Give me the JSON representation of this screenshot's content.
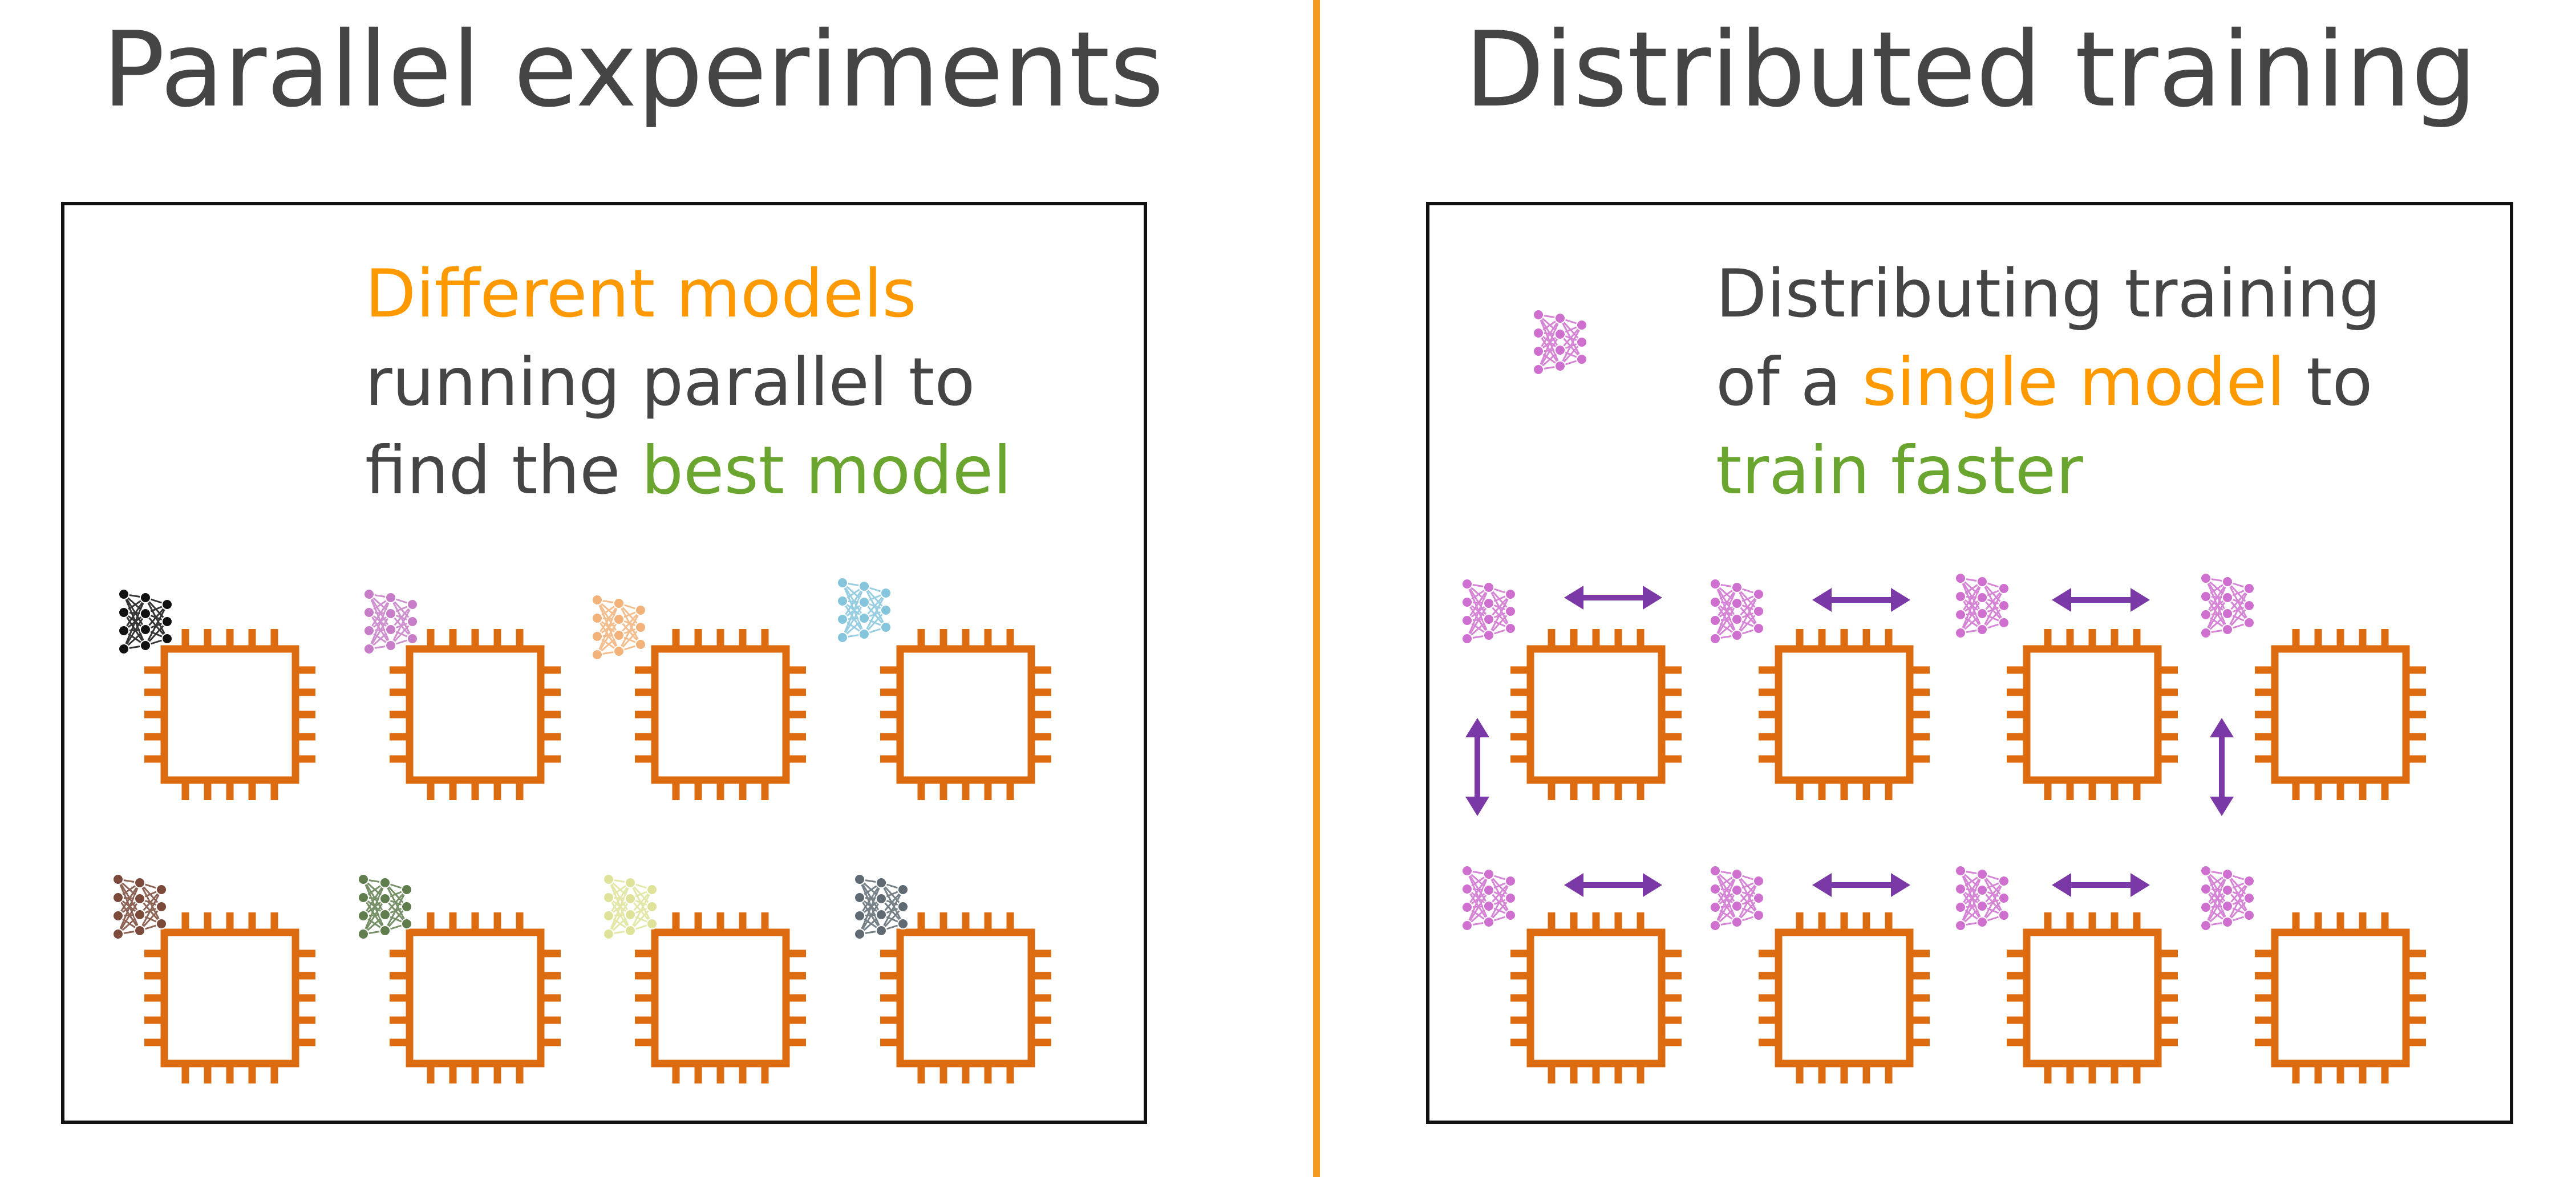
{
  "colors": {
    "text": "#454545",
    "orange": "#ff9900",
    "green": "#6aa530",
    "chip": "#dd6b10",
    "divider": "#f39a1f",
    "arrow": "#7a39a6",
    "box_border": "#111111",
    "distributed_model": "#cf6fcf"
  },
  "left": {
    "title": "Parallel experiments",
    "desc": {
      "line1": {
        "highlight": "Different models"
      },
      "line2": {
        "text": "running parallel to"
      },
      "line3": {
        "prefix": "find the ",
        "highlight": "best model"
      }
    },
    "model_colors": [
      "#111111",
      "#c77dc7",
      "#f2b27a",
      "#86c6dd",
      "#7b4a3a",
      "#5f7d4d",
      "#dfe39a",
      "#5f6a73"
    ],
    "chip_icon": "chip-icon",
    "model_icon": "neural-network-icon"
  },
  "right": {
    "title": "Distributed training",
    "desc": {
      "line1": {
        "text": "Distributing training"
      },
      "line2": {
        "prefix": "of a ",
        "highlight": "single model",
        "suffix": " to"
      },
      "line3": {
        "highlight": "train faster"
      }
    },
    "chip_icon": "chip-icon",
    "model_icon": "neural-network-icon",
    "arrow_icon": "double-arrow-icon"
  }
}
